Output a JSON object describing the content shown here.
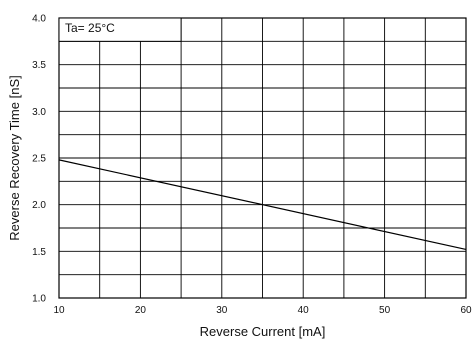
{
  "chart_data": {
    "type": "line",
    "title": "",
    "xlabel": "Reverse Current [mA]",
    "ylabel": "Reverse Recovery Time [nS]",
    "xlim": [
      10,
      60
    ],
    "ylim": [
      1.0,
      4.0
    ],
    "x_ticks": [
      10,
      20,
      30,
      40,
      50,
      60
    ],
    "x_tick_labels": [
      "10",
      "20",
      "30",
      "40",
      "50",
      "60"
    ],
    "x_minor_step": 5,
    "y_ticks": [
      1.0,
      1.5,
      2.0,
      2.5,
      3.0,
      3.5,
      4.0
    ],
    "y_tick_labels": [
      "1.0",
      "1.5",
      "2.0",
      "2.5",
      "3.0",
      "3.5",
      "4.0"
    ],
    "y_minor_step": 0.25,
    "grid": true,
    "series": [
      {
        "x": [
          10,
          60
        ],
        "y": [
          2.48,
          1.52
        ]
      }
    ],
    "annotation": "Ta= 25°C",
    "colors": {
      "line": "#000000",
      "grid": "#000000"
    }
  }
}
